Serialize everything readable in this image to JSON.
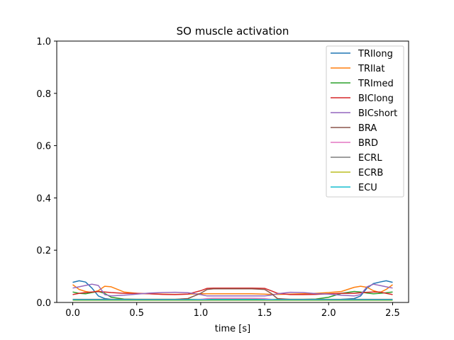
{
  "chart_data": {
    "type": "line",
    "title": "SO muscle activation",
    "xlabel": "time [s]",
    "ylabel": "",
    "xlim": [
      -0.125,
      2.625
    ],
    "ylim": [
      0,
      1.0
    ],
    "xticks": [
      0.0,
      0.5,
      1.0,
      1.5,
      2.0,
      2.5
    ],
    "xtick_labels": [
      "0.0",
      "0.5",
      "1.0",
      "1.5",
      "2.0",
      "2.5"
    ],
    "yticks": [
      0.0,
      0.2,
      0.4,
      0.6,
      0.8,
      1.0
    ],
    "ytick_labels": [
      "0.0",
      "0.2",
      "0.4",
      "0.6",
      "0.8",
      "1.0"
    ],
    "grid": false,
    "legend_position": "upper right",
    "x": [
      0.0,
      0.05,
      0.1,
      0.15,
      0.2,
      0.25,
      0.3,
      0.4,
      0.5,
      0.6,
      0.7,
      0.8,
      0.9,
      1.0,
      1.05,
      1.1,
      1.2,
      1.3,
      1.4,
      1.5,
      1.55,
      1.6,
      1.7,
      1.8,
      1.9,
      2.0,
      2.1,
      2.2,
      2.25,
      2.3,
      2.35,
      2.4,
      2.45,
      2.5
    ],
    "series": [
      {
        "name": "TRIlong",
        "color": "#1f77b4",
        "values": [
          0.077,
          0.083,
          0.078,
          0.055,
          0.025,
          0.015,
          0.012,
          0.011,
          0.011,
          0.011,
          0.011,
          0.011,
          0.011,
          0.011,
          0.011,
          0.011,
          0.011,
          0.011,
          0.011,
          0.011,
          0.011,
          0.011,
          0.011,
          0.011,
          0.011,
          0.011,
          0.012,
          0.015,
          0.025,
          0.055,
          0.072,
          0.078,
          0.083,
          0.077
        ]
      },
      {
        "name": "TRIlat",
        "color": "#ff7f0e",
        "values": [
          0.068,
          0.05,
          0.042,
          0.038,
          0.045,
          0.062,
          0.06,
          0.04,
          0.035,
          0.033,
          0.032,
          0.031,
          0.032,
          0.033,
          0.033,
          0.033,
          0.033,
          0.033,
          0.033,
          0.032,
          0.031,
          0.031,
          0.032,
          0.033,
          0.035,
          0.038,
          0.042,
          0.058,
          0.062,
          0.058,
          0.045,
          0.038,
          0.05,
          0.068
        ]
      },
      {
        "name": "TRImed",
        "color": "#2ca02c",
        "values": [
          0.04,
          0.035,
          0.033,
          0.038,
          0.042,
          0.035,
          0.02,
          0.013,
          0.012,
          0.012,
          0.012,
          0.012,
          0.012,
          0.012,
          0.012,
          0.012,
          0.012,
          0.012,
          0.012,
          0.012,
          0.012,
          0.012,
          0.012,
          0.012,
          0.013,
          0.02,
          0.035,
          0.042,
          0.04,
          0.036,
          0.033,
          0.035,
          0.037,
          0.04
        ]
      },
      {
        "name": "BIClong",
        "color": "#d62728",
        "values": [
          0.03,
          0.035,
          0.038,
          0.04,
          0.042,
          0.04,
          0.038,
          0.035,
          0.035,
          0.033,
          0.031,
          0.03,
          0.032,
          0.045,
          0.054,
          0.055,
          0.055,
          0.055,
          0.055,
          0.054,
          0.045,
          0.035,
          0.03,
          0.03,
          0.031,
          0.033,
          0.035,
          0.035,
          0.037,
          0.039,
          0.04,
          0.04,
          0.035,
          0.03
        ]
      },
      {
        "name": "BICshort",
        "color": "#9467bd",
        "values": [
          0.055,
          0.06,
          0.065,
          0.07,
          0.065,
          0.03,
          0.025,
          0.028,
          0.032,
          0.036,
          0.038,
          0.039,
          0.037,
          0.03,
          0.025,
          0.025,
          0.025,
          0.025,
          0.025,
          0.025,
          0.028,
          0.033,
          0.039,
          0.038,
          0.034,
          0.032,
          0.028,
          0.025,
          0.03,
          0.06,
          0.07,
          0.065,
          0.06,
          0.055
        ]
      },
      {
        "name": "BRA",
        "color": "#8c564b",
        "values": [
          0.012,
          0.012,
          0.012,
          0.012,
          0.012,
          0.012,
          0.012,
          0.012,
          0.012,
          0.012,
          0.012,
          0.012,
          0.015,
          0.035,
          0.05,
          0.052,
          0.052,
          0.052,
          0.052,
          0.05,
          0.035,
          0.015,
          0.012,
          0.012,
          0.012,
          0.012,
          0.012,
          0.012,
          0.012,
          0.012,
          0.012,
          0.012,
          0.012,
          0.012
        ]
      },
      {
        "name": "BRD",
        "color": "#e377c2",
        "values": [
          0.01,
          0.01,
          0.01,
          0.01,
          0.01,
          0.01,
          0.01,
          0.01,
          0.01,
          0.01,
          0.01,
          0.01,
          0.01,
          0.012,
          0.015,
          0.016,
          0.016,
          0.016,
          0.016,
          0.015,
          0.012,
          0.01,
          0.01,
          0.01,
          0.01,
          0.01,
          0.01,
          0.01,
          0.01,
          0.01,
          0.01,
          0.01,
          0.01,
          0.01
        ]
      },
      {
        "name": "ECRL",
        "color": "#7f7f7f",
        "values": [
          0.009,
          0.009,
          0.009,
          0.009,
          0.009,
          0.009,
          0.009,
          0.009,
          0.009,
          0.009,
          0.009,
          0.009,
          0.009,
          0.009,
          0.009,
          0.009,
          0.009,
          0.009,
          0.009,
          0.009,
          0.009,
          0.009,
          0.009,
          0.009,
          0.009,
          0.009,
          0.009,
          0.009,
          0.009,
          0.009,
          0.009,
          0.009,
          0.009,
          0.009
        ]
      },
      {
        "name": "ECRB",
        "color": "#bcbd22",
        "values": [
          0.008,
          0.008,
          0.008,
          0.008,
          0.008,
          0.008,
          0.008,
          0.008,
          0.008,
          0.008,
          0.008,
          0.008,
          0.008,
          0.008,
          0.008,
          0.008,
          0.008,
          0.008,
          0.008,
          0.008,
          0.008,
          0.008,
          0.008,
          0.008,
          0.008,
          0.008,
          0.008,
          0.008,
          0.008,
          0.008,
          0.008,
          0.008,
          0.008,
          0.008
        ]
      },
      {
        "name": "ECU",
        "color": "#17becf",
        "values": [
          0.01,
          0.01,
          0.01,
          0.01,
          0.01,
          0.01,
          0.01,
          0.01,
          0.01,
          0.01,
          0.01,
          0.01,
          0.01,
          0.01,
          0.01,
          0.01,
          0.01,
          0.01,
          0.01,
          0.01,
          0.01,
          0.01,
          0.01,
          0.01,
          0.01,
          0.01,
          0.01,
          0.01,
          0.01,
          0.01,
          0.01,
          0.01,
          0.01,
          0.01
        ]
      }
    ]
  }
}
